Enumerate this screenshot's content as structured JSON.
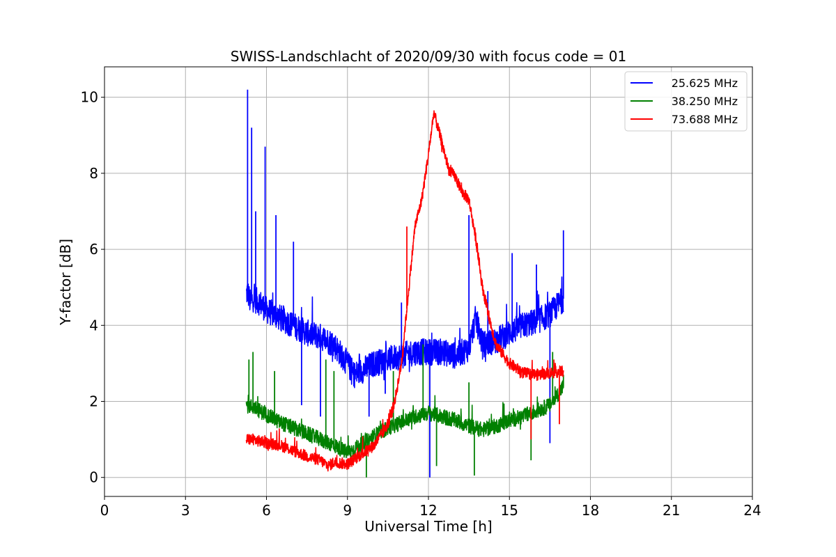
{
  "chart_data": {
    "type": "line",
    "title": "SWISS-Landschlacht of 2020/09/30 with focus code = 01",
    "xlabel": "Universal Time [h]",
    "ylabel": "Y-factor [dB]",
    "xlim": [
      0,
      24
    ],
    "ylim": [
      -0.5,
      10.8
    ],
    "xticks": [
      "0",
      "3",
      "6",
      "9",
      "12",
      "15",
      "18",
      "21",
      "24"
    ],
    "yticks": [
      "0",
      "2",
      "4",
      "6",
      "8",
      "10"
    ],
    "grid": true,
    "legend_position": "top-right",
    "series": [
      {
        "name": "25.625 MHz",
        "color": "#0000ff",
        "x": [
          5.25,
          5.3,
          5.4,
          5.5,
          5.75,
          6.0,
          6.5,
          7.0,
          7.5,
          8.0,
          8.5,
          9.0,
          9.25,
          9.5,
          10.0,
          10.5,
          11.0,
          11.5,
          12.0,
          12.5,
          13.0,
          13.5,
          13.75,
          14.0,
          14.5,
          15.0,
          15.5,
          16.0,
          16.5,
          17.0
        ],
        "y": [
          4.8,
          4.9,
          4.6,
          4.7,
          4.6,
          4.4,
          4.2,
          4.0,
          3.8,
          3.7,
          3.5,
          3.0,
          2.7,
          2.8,
          3.0,
          3.1,
          3.2,
          3.3,
          3.3,
          3.3,
          3.2,
          3.4,
          4.2,
          3.5,
          3.6,
          3.8,
          4.0,
          4.1,
          4.3,
          4.7
        ],
        "spikes": [
          {
            "x": 5.3,
            "y": 10.2
          },
          {
            "x": 5.45,
            "y": 9.2
          },
          {
            "x": 5.6,
            "y": 7.0
          },
          {
            "x": 5.95,
            "y": 8.7
          },
          {
            "x": 6.35,
            "y": 6.9
          },
          {
            "x": 7.0,
            "y": 6.2
          },
          {
            "x": 7.3,
            "y": 1.9
          },
          {
            "x": 8.0,
            "y": 1.6
          },
          {
            "x": 9.8,
            "y": 1.6
          },
          {
            "x": 10.4,
            "y": 2.2
          },
          {
            "x": 11.0,
            "y": 4.6
          },
          {
            "x": 12.05,
            "y": 0.0
          },
          {
            "x": 13.5,
            "y": 6.9
          },
          {
            "x": 14.2,
            "y": 4.9
          },
          {
            "x": 15.1,
            "y": 5.9
          },
          {
            "x": 16.0,
            "y": 5.6
          },
          {
            "x": 16.5,
            "y": 0.9
          },
          {
            "x": 17.0,
            "y": 6.5
          }
        ],
        "noise": 0.35
      },
      {
        "name": "38.250 MHz",
        "color": "#008000",
        "x": [
          5.25,
          5.5,
          6.0,
          6.5,
          7.0,
          7.5,
          8.0,
          8.5,
          9.0,
          9.5,
          10.0,
          10.5,
          11.0,
          11.5,
          12.0,
          12.5,
          13.0,
          13.5,
          14.0,
          14.5,
          15.0,
          15.5,
          16.0,
          16.5,
          17.0
        ],
        "y": [
          1.9,
          1.85,
          1.65,
          1.45,
          1.3,
          1.15,
          1.0,
          0.85,
          0.65,
          0.85,
          1.1,
          1.3,
          1.45,
          1.6,
          1.7,
          1.6,
          1.5,
          1.35,
          1.25,
          1.35,
          1.5,
          1.6,
          1.75,
          1.9,
          2.4
        ],
        "spikes": [
          {
            "x": 5.35,
            "y": 3.1
          },
          {
            "x": 5.5,
            "y": 3.3
          },
          {
            "x": 6.3,
            "y": 2.8
          },
          {
            "x": 8.2,
            "y": 3.1
          },
          {
            "x": 8.5,
            "y": 2.8
          },
          {
            "x": 9.7,
            "y": 0.0
          },
          {
            "x": 10.7,
            "y": 2.8
          },
          {
            "x": 11.8,
            "y": 3.5
          },
          {
            "x": 12.3,
            "y": 0.3
          },
          {
            "x": 13.5,
            "y": 2.5
          },
          {
            "x": 13.7,
            "y": 0.05
          },
          {
            "x": 15.8,
            "y": 0.45
          },
          {
            "x": 16.6,
            "y": 3.3
          },
          {
            "x": 17.0,
            "y": 2.7
          }
        ],
        "noise": 0.2
      },
      {
        "name": "73.688 MHz",
        "color": "#ff0000",
        "x": [
          5.25,
          5.5,
          6.0,
          6.5,
          7.0,
          7.5,
          8.0,
          8.3,
          8.5,
          9.0,
          9.5,
          10.0,
          10.5,
          10.75,
          11.0,
          11.25,
          11.5,
          11.75,
          12.0,
          12.2,
          12.5,
          12.75,
          13.0,
          13.25,
          13.5,
          13.75,
          14.0,
          14.25,
          14.5,
          15.0,
          15.5,
          16.0,
          16.5,
          17.0
        ],
        "y": [
          1.0,
          1.0,
          0.9,
          0.85,
          0.7,
          0.55,
          0.45,
          0.3,
          0.4,
          0.35,
          0.6,
          0.85,
          1.4,
          2.0,
          3.0,
          4.8,
          6.6,
          7.3,
          8.5,
          9.6,
          8.8,
          8.1,
          7.9,
          7.5,
          7.3,
          6.3,
          5.0,
          4.2,
          3.5,
          3.0,
          2.75,
          2.7,
          2.75,
          2.8
        ],
        "spikes": [
          {
            "x": 11.2,
            "y": 6.6
          },
          {
            "x": 15.8,
            "y": 1.0
          },
          {
            "x": 16.85,
            "y": 1.4
          }
        ],
        "noise": 0.15
      }
    ]
  }
}
